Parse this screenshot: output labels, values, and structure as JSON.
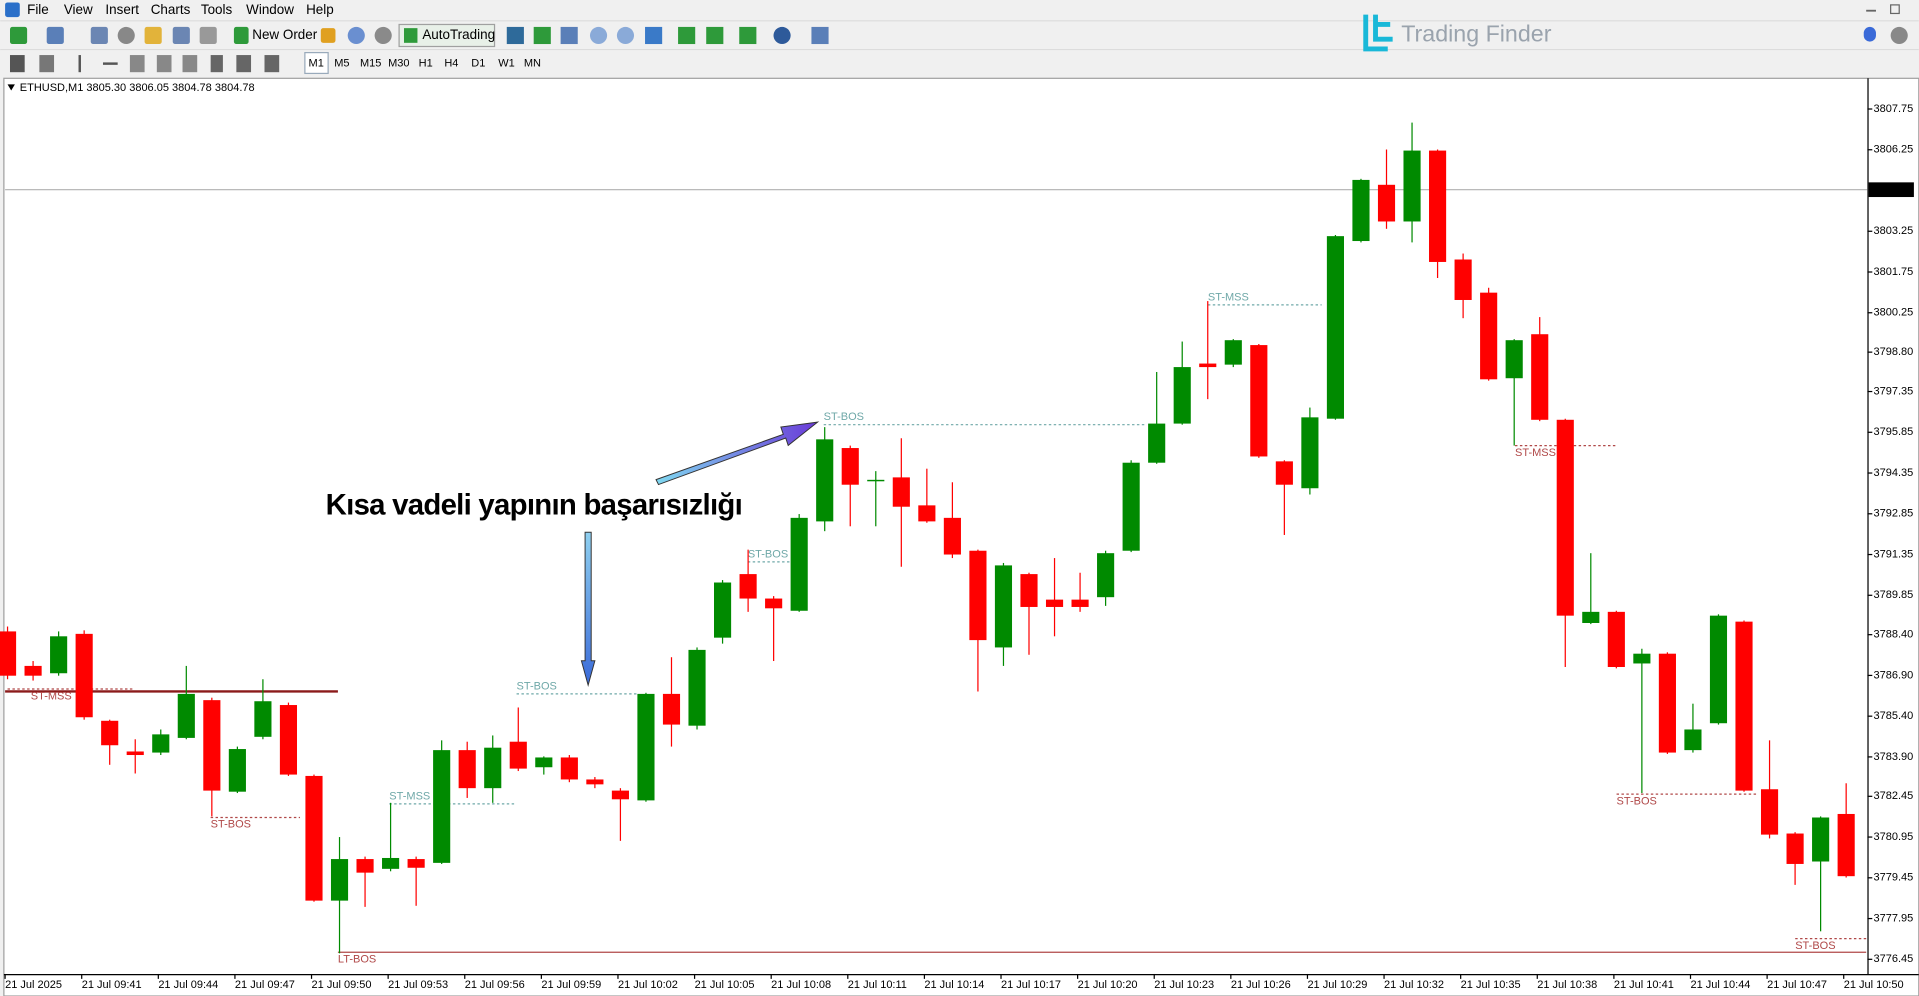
{
  "menu": [
    "File",
    "View",
    "Insert",
    "Charts",
    "Tools",
    "Window",
    "Help"
  ],
  "toolbar": {
    "new_order": "New Order",
    "autotrading": "AutoTrading",
    "timeframes": [
      "M1",
      "M5",
      "M15",
      "M30",
      "H1",
      "H4",
      "D1",
      "W1",
      "MN"
    ]
  },
  "brand": "Trading Finder",
  "chart_data": {
    "type": "candlestick",
    "header": "ETHUSD,M1  3805.30 3806.05 3804.78 3804.78",
    "annotation": "Kısa vadeli yapının başarısızlığı",
    "categories": [
      "21 Jul 2025",
      null,
      null,
      "21 Jul 09:41",
      null,
      null,
      "21 Jul 09:44",
      null,
      null,
      "21 Jul 09:47",
      null,
      null,
      "21 Jul 09:50",
      null,
      null,
      "21 Jul 09:53",
      null,
      null,
      "21 Jul 09:56",
      null,
      null,
      "21 Jul 09:59",
      null,
      null,
      "21 Jul 10:02",
      null,
      null,
      "21 Jul 10:05",
      null,
      null,
      "21 Jul 10:08",
      null,
      null,
      "21 Jul 10:11",
      null,
      null,
      "21 Jul 10:14",
      null,
      null,
      "21 Jul 10:17",
      null,
      null,
      "21 Jul 10:20",
      null,
      null,
      "21 Jul 10:23",
      null,
      null,
      "21 Jul 10:26",
      null,
      null,
      "21 Jul 10:29",
      null,
      null,
      "21 Jul 10:32",
      null,
      null,
      "21 Jul 10:35",
      null,
      null,
      "21 Jul 10:38",
      null,
      null,
      "21 Jul 10:41",
      null,
      null,
      "21 Jul 10:44",
      null,
      null,
      "21 Jul 10:47",
      null,
      null,
      "21 Jul 10:50"
    ],
    "open": [
      3788.52,
      3787.25,
      3786.98,
      3788.43,
      3785.23,
      3784.1,
      3784.06,
      3784.6,
      3785.99,
      3782.62,
      3784.64,
      3785.81,
      3783.2,
      3778.61,
      3780.14,
      3779.78,
      3780.14,
      3780.0,
      3784.15,
      3782.75,
      3784.46,
      3783.52,
      3783.88,
      3783.07,
      3782.66,
      3782.3,
      3786.22,
      3785.05,
      3788.29,
      3790.63,
      3789.73,
      3789.28,
      3792.57,
      3795.27,
      3794.06,
      3794.19,
      3793.16,
      3792.7,
      3791.49,
      3787.93,
      3790.63,
      3789.69,
      3789.69,
      3789.78,
      3791.49,
      3794.73,
      3796.17,
      3798.38,
      3798.34,
      3799.06,
      3794.78,
      3793.79,
      3796.35,
      3802.89,
      3804.96,
      3803.61,
      3806.22,
      3802.21,
      3800.99,
      3797.84,
      3799.46,
      3796.31,
      3788.83,
      3789.24,
      3787.34,
      3787.7,
      3784.15,
      3785.14,
      3788.88,
      3782.71,
      3781.08,
      3780.05,
      3781.8
    ],
    "high": [
      3788.7,
      3787.43,
      3788.52,
      3788.56,
      3785.27,
      3784.55,
      3784.91,
      3787.25,
      3786.08,
      3784.28,
      3786.76,
      3785.9,
      3783.25,
      3780.95,
      3780.23,
      3782.21,
      3780.23,
      3784.51,
      3784.46,
      3784.69,
      3785.72,
      3783.92,
      3783.97,
      3783.16,
      3782.75,
      3786.26,
      3787.57,
      3787.93,
      3790.41,
      3791.53,
      3789.82,
      3792.84,
      3796.04,
      3795.36,
      3794.42,
      3795.63,
      3794.51,
      3794.01,
      3791.53,
      3791.04,
      3790.68,
      3791.22,
      3790.68,
      3791.49,
      3794.82,
      3798.07,
      3799.19,
      3800.68,
      3799.28,
      3799.1,
      3794.82,
      3796.76,
      3803.11,
      3805.18,
      3806.26,
      3807.25,
      3806.26,
      3802.43,
      3801.17,
      3799.28,
      3800.09,
      3796.35,
      3791.4,
      3789.28,
      3787.88,
      3787.75,
      3785.86,
      3789.15,
      3788.92,
      3784.51,
      3781.13,
      3781.71,
      3782.93
    ],
    "low": [
      3786.76,
      3786.71,
      3786.89,
      3785.27,
      3783.61,
      3783.29,
      3783.97,
      3784.55,
      3781.71,
      3782.57,
      3784.55,
      3783.2,
      3778.57,
      3776.67,
      3778.38,
      3779.69,
      3778.42,
      3779.96,
      3782.39,
      3782.21,
      3783.38,
      3783.25,
      3782.97,
      3782.75,
      3780.81,
      3782.25,
      3784.28,
      3784.91,
      3788.07,
      3789.24,
      3787.43,
      3789.24,
      3792.21,
      3792.39,
      3792.39,
      3790.9,
      3792.52,
      3791.22,
      3786.31,
      3787.25,
      3787.66,
      3788.34,
      3789.24,
      3789.46,
      3791.44,
      3794.69,
      3796.13,
      3797.07,
      3798.25,
      3794.91,
      3792.07,
      3793.56,
      3796.31,
      3802.84,
      3803.34,
      3802.84,
      3801.53,
      3800.05,
      3797.75,
      3795.36,
      3796.26,
      3787.21,
      3788.79,
      3787.16,
      3782.57,
      3784.01,
      3784.06,
      3785.09,
      3782.62,
      3780.9,
      3779.19,
      3777.48,
      3779.46
    ],
    "close": [
      3786.89,
      3786.89,
      3788.34,
      3785.36,
      3784.33,
      3783.97,
      3784.73,
      3786.22,
      3782.66,
      3784.19,
      3785.95,
      3783.25,
      3778.61,
      3780.14,
      3779.64,
      3780.18,
      3779.82,
      3784.15,
      3782.75,
      3784.24,
      3783.47,
      3783.88,
      3783.07,
      3782.89,
      3782.34,
      3786.22,
      3785.09,
      3787.84,
      3790.32,
      3789.73,
      3789.37,
      3792.7,
      3795.59,
      3793.92,
      3794.1,
      3793.11,
      3792.57,
      3791.35,
      3788.2,
      3790.95,
      3789.42,
      3789.42,
      3789.42,
      3791.4,
      3794.73,
      3796.17,
      3798.25,
      3798.25,
      3799.24,
      3794.96,
      3793.92,
      3796.4,
      3803.07,
      3805.14,
      3803.61,
      3806.22,
      3802.12,
      3800.72,
      3797.8,
      3799.24,
      3796.31,
      3789.1,
      3789.24,
      3787.21,
      3787.7,
      3784.06,
      3784.91,
      3789.1,
      3782.66,
      3781.04,
      3779.96,
      3781.67,
      3779.51
    ],
    "up_color": "#008a00",
    "down_color": "#ff0000",
    "ylim": [
      3775.91,
      3808.79
    ],
    "yticks": [
      3807.75,
      3806.25,
      3803.25,
      3801.75,
      3800.25,
      {
        "value": 3798.8,
        "label": "3798.80"
      },
      3797.35,
      3795.85,
      3794.35,
      3792.85,
      3791.35,
      3789.85,
      {
        "value": 3788.4,
        "label": "3788.40"
      },
      {
        "value": 3786.9,
        "label": "3786.90"
      },
      {
        "value": 3785.4,
        "label": "3785.40"
      },
      {
        "value": 3783.9,
        "label": "3783.90"
      },
      3782.45,
      3780.95,
      3779.45,
      3777.95,
      3776.45
    ],
    "current_price": 3804.78,
    "hline": 3786.31,
    "levels": [
      {
        "label": "ST-MSS",
        "value": 3786.4,
        "color": "#b04848"
      },
      {
        "label": "ST-BOS",
        "value": 3781.67,
        "color": "#b04848"
      },
      {
        "label": "LT-BOS",
        "value": 3776.71,
        "color": "#b04848"
      },
      {
        "label": "ST-MSS",
        "value": 3782.17,
        "color": "#6fa8a8"
      },
      {
        "label": "ST-BOS",
        "value": 3786.22,
        "color": "#6fa8a8"
      },
      {
        "label": "ST-BOS",
        "value": 3791.08,
        "color": "#6fa8a8"
      },
      {
        "label": "ST-BOS",
        "value": 3796.13,
        "color": "#6fa8a8"
      },
      {
        "label": "ST-MSS",
        "value": 3800.54,
        "color": "#6fa8a8"
      },
      {
        "label": "ST-MSS",
        "value": 3795.36,
        "color": "#b04848"
      },
      {
        "label": "ST-BOS",
        "value": 3782.53,
        "color": "#b04848"
      },
      {
        "label": "ST-BOS",
        "value": 3777.21,
        "color": "#b04848"
      }
    ]
  }
}
